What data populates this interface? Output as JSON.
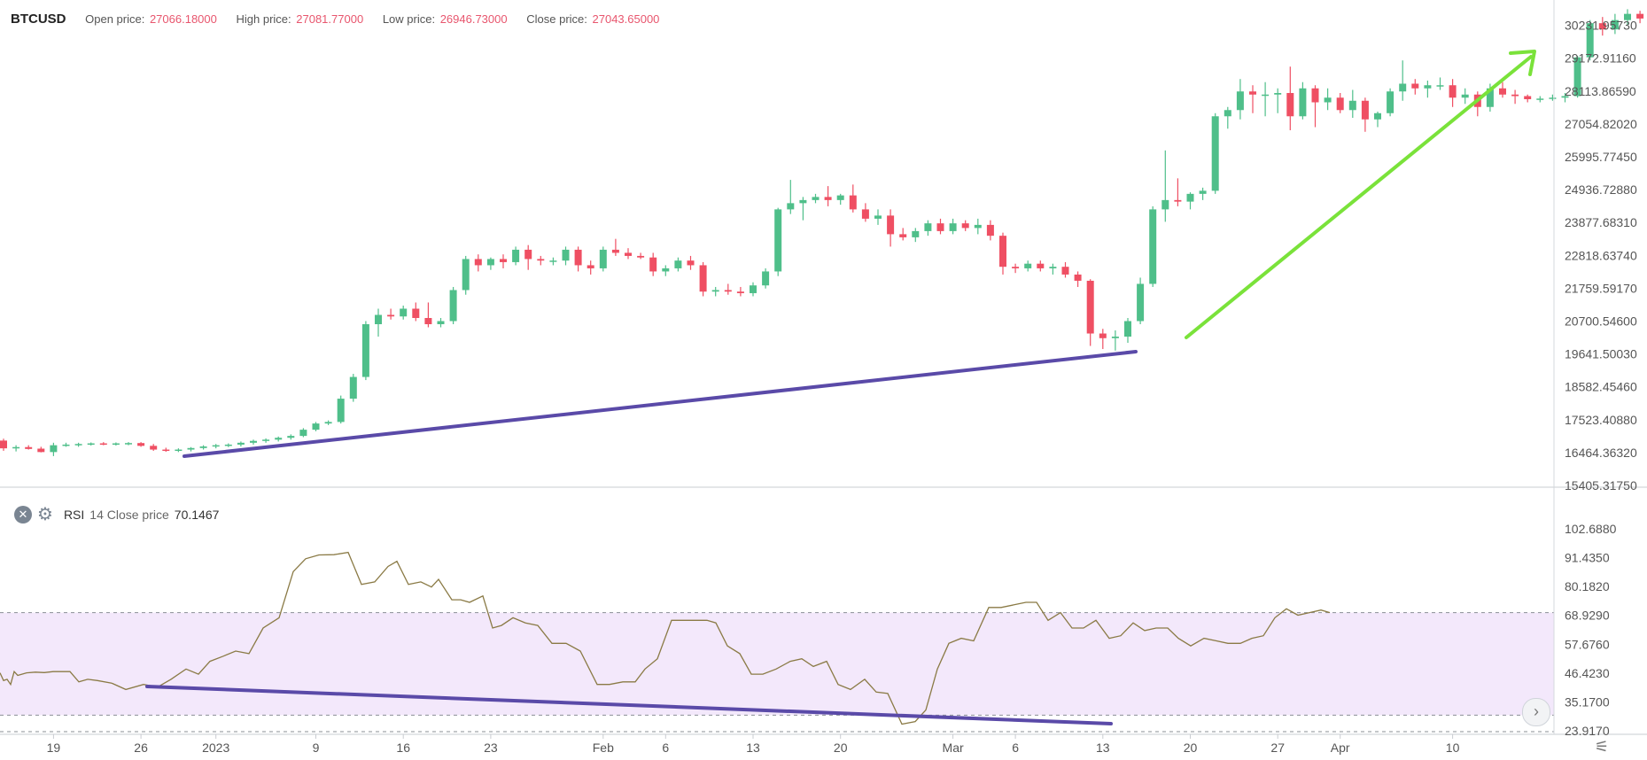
{
  "header": {
    "symbol": "BTCUSD",
    "open_label": "Open price:",
    "open_value": "27066.18000",
    "high_label": "High price:",
    "high_value": "27081.77000",
    "low_label": "Low price:",
    "low_value": "26946.73000",
    "close_label": "Close price:",
    "close_value": "27043.65000"
  },
  "rsi_legend": {
    "name": "RSI",
    "params": "14 Close price",
    "value": "70.1467"
  },
  "colors": {
    "up": "#4fbf8a",
    "down": "#ef4f63",
    "rsi_line": "#8a7a45",
    "rsi_band": "#f3e8fb",
    "trend_purple": "#5a4aa8",
    "trend_green": "#7ae23a"
  },
  "chart_data": [
    {
      "type": "candlestick",
      "price_axis_ticks": [
        "30231.95730",
        "29172.91160",
        "28113.86590",
        "27054.82020",
        "25995.77450",
        "24936.72880",
        "23877.68310",
        "22818.63740",
        "21759.59170",
        "20700.54600",
        "19641.50030",
        "18582.45460",
        "17523.40880",
        "16464.36320",
        "15405.31750"
      ],
      "ylim": [
        15405.3175,
        30761.47
      ],
      "x_axis_ticks": [
        {
          "label": "19",
          "i": 4
        },
        {
          "label": "26",
          "i": 11
        },
        {
          "label": "2023",
          "i": 17
        },
        {
          "label": "9",
          "i": 25
        },
        {
          "label": "16",
          "i": 32
        },
        {
          "label": "23",
          "i": 39
        },
        {
          "label": "Feb",
          "i": 48
        },
        {
          "label": "6",
          "i": 53
        },
        {
          "label": "13",
          "i": 60
        },
        {
          "label": "20",
          "i": 67
        },
        {
          "label": "Mar",
          "i": 76
        },
        {
          "label": "6",
          "i": 81
        },
        {
          "label": "13",
          "i": 88
        },
        {
          "label": "20",
          "i": 95
        },
        {
          "label": "27",
          "i": 102
        },
        {
          "label": "Apr",
          "i": 107
        },
        {
          "label": "10",
          "i": 116
        }
      ],
      "candles": [
        [
          16850,
          16910,
          16520,
          16600
        ],
        [
          16600,
          16700,
          16500,
          16640
        ],
        [
          16640,
          16700,
          16560,
          16580
        ],
        [
          16590,
          16650,
          16470,
          16480
        ],
        [
          16480,
          16780,
          16350,
          16700
        ],
        [
          16700,
          16780,
          16650,
          16720
        ],
        [
          16720,
          16780,
          16650,
          16740
        ],
        [
          16740,
          16790,
          16690,
          16760
        ],
        [
          16760,
          16800,
          16700,
          16740
        ],
        [
          16740,
          16790,
          16690,
          16760
        ],
        [
          16760,
          16800,
          16700,
          16770
        ],
        [
          16770,
          16800,
          16650,
          16680
        ],
        [
          16680,
          16740,
          16520,
          16560
        ],
        [
          16560,
          16620,
          16490,
          16520
        ],
        [
          16520,
          16600,
          16480,
          16560
        ],
        [
          16560,
          16640,
          16500,
          16610
        ],
        [
          16610,
          16700,
          16560,
          16660
        ],
        [
          16660,
          16740,
          16600,
          16700
        ],
        [
          16700,
          16760,
          16640,
          16720
        ],
        [
          16720,
          16820,
          16660,
          16780
        ],
        [
          16780,
          16880,
          16720,
          16840
        ],
        [
          16840,
          16920,
          16780,
          16880
        ],
        [
          16880,
          16980,
          16820,
          16940
        ],
        [
          16940,
          17050,
          16880,
          17000
        ],
        [
          17000,
          17250,
          16960,
          17200
        ],
        [
          17200,
          17450,
          17150,
          17400
        ],
        [
          17400,
          17500,
          17350,
          17450
        ],
        [
          17450,
          18300,
          17400,
          18200
        ],
        [
          18200,
          19000,
          18100,
          18900
        ],
        [
          18900,
          20700,
          18800,
          20600
        ],
        [
          20600,
          21100,
          20200,
          20900
        ],
        [
          20900,
          21100,
          20750,
          20850
        ],
        [
          20850,
          21200,
          20750,
          21100
        ],
        [
          21100,
          21300,
          20700,
          20800
        ],
        [
          20800,
          21300,
          20500,
          20600
        ],
        [
          20600,
          20800,
          20500,
          20700
        ],
        [
          20700,
          21800,
          20600,
          21700
        ],
        [
          21700,
          22800,
          21550,
          22700
        ],
        [
          22700,
          22850,
          22300,
          22500
        ],
        [
          22500,
          22750,
          22350,
          22700
        ],
        [
          22700,
          22850,
          22400,
          22600
        ],
        [
          22600,
          23100,
          22500,
          23000
        ],
        [
          23000,
          23150,
          22350,
          22700
        ],
        [
          22700,
          22800,
          22500,
          22650
        ],
        [
          22650,
          22750,
          22500,
          22650
        ],
        [
          22650,
          23100,
          22500,
          23000
        ],
        [
          23000,
          23100,
          22300,
          22500
        ],
        [
          22500,
          22650,
          22200,
          22400
        ],
        [
          22400,
          23100,
          22300,
          23000
        ],
        [
          23000,
          23350,
          22800,
          22900
        ],
        [
          22900,
          23050,
          22700,
          22800
        ],
        [
          22800,
          22900,
          22700,
          22750
        ],
        [
          22750,
          22900,
          22150,
          22300
        ],
        [
          22300,
          22500,
          22150,
          22400
        ],
        [
          22400,
          22750,
          22300,
          22650
        ],
        [
          22650,
          22800,
          22350,
          22500
        ],
        [
          22500,
          22600,
          21500,
          21650
        ],
        [
          21650,
          21800,
          21500,
          21700
        ],
        [
          21700,
          21900,
          21550,
          21650
        ],
        [
          21650,
          21800,
          21500,
          21600
        ],
        [
          21600,
          21950,
          21500,
          21850
        ],
        [
          21850,
          22400,
          21750,
          22300
        ],
        [
          22300,
          24350,
          22150,
          24300
        ],
        [
          24300,
          25250,
          24150,
          24500
        ],
        [
          24500,
          24700,
          23950,
          24600
        ],
        [
          24600,
          24800,
          24500,
          24700
        ],
        [
          24700,
          25050,
          24400,
          24600
        ],
        [
          24600,
          24800,
          24450,
          24750
        ],
        [
          24750,
          25100,
          24200,
          24300
        ],
        [
          24300,
          24500,
          23900,
          24000
        ],
        [
          24000,
          24300,
          23800,
          24100
        ],
        [
          24100,
          24300,
          23100,
          23500
        ],
        [
          23500,
          23700,
          23300,
          23400
        ],
        [
          23400,
          23700,
          23250,
          23600
        ],
        [
          23600,
          23950,
          23450,
          23850
        ],
        [
          23850,
          24000,
          23500,
          23600
        ],
        [
          23600,
          24000,
          23500,
          23850
        ],
        [
          23850,
          23950,
          23600,
          23700
        ],
        [
          23700,
          24000,
          23500,
          23800
        ],
        [
          23800,
          23950,
          23300,
          23450
        ],
        [
          23450,
          23550,
          22200,
          22450
        ],
        [
          22450,
          22550,
          22250,
          22400
        ],
        [
          22400,
          22650,
          22300,
          22550
        ],
        [
          22550,
          22650,
          22300,
          22400
        ],
        [
          22400,
          22550,
          22200,
          22450
        ],
        [
          22450,
          22600,
          22100,
          22200
        ],
        [
          22200,
          22300,
          21800,
          22000
        ],
        [
          22000,
          22050,
          19900,
          20300
        ],
        [
          20300,
          20450,
          19800,
          20150
        ],
        [
          20150,
          20400,
          19750,
          20200
        ],
        [
          20200,
          20800,
          20000,
          20700
        ],
        [
          20700,
          22100,
          20600,
          21900
        ],
        [
          21900,
          24400,
          21800,
          24300
        ],
        [
          24300,
          26200,
          23900,
          24600
        ],
        [
          24600,
          25300,
          24400,
          24550
        ],
        [
          24550,
          24850,
          24300,
          24800
        ],
        [
          24800,
          25000,
          24600,
          24900
        ],
        [
          24900,
          27400,
          24800,
          27300
        ],
        [
          27300,
          27600,
          26900,
          27500
        ],
        [
          27500,
          28500,
          27200,
          28100
        ],
        [
          28100,
          28300,
          27400,
          28000
        ],
        [
          28000,
          28400,
          27300,
          28000
        ],
        [
          28000,
          28200,
          27400,
          28050
        ],
        [
          28050,
          28900,
          26850,
          27300
        ],
        [
          27300,
          28400,
          27200,
          28200
        ],
        [
          28200,
          28300,
          26950,
          27750
        ],
        [
          27750,
          28200,
          27500,
          27900
        ],
        [
          27900,
          28050,
          27400,
          27500
        ],
        [
          27500,
          28150,
          27250,
          27800
        ],
        [
          27800,
          27900,
          26800,
          27200
        ],
        [
          27200,
          27450,
          26950,
          27400
        ],
        [
          27400,
          28200,
          27300,
          28100
        ],
        [
          28100,
          29100,
          27800,
          28350
        ],
        [
          28350,
          28500,
          28000,
          28200
        ],
        [
          28200,
          28450,
          27900,
          28300
        ],
        [
          28300,
          28550,
          28150,
          28300
        ],
        [
          28300,
          28500,
          27600,
          27900
        ],
        [
          27900,
          28200,
          27700,
          28000
        ],
        [
          28000,
          28100,
          27300,
          27600
        ],
        [
          27600,
          28350,
          27450,
          28200
        ],
        [
          28200,
          28400,
          27900,
          28000
        ],
        [
          28000,
          28150,
          27700,
          27950
        ],
        [
          27950,
          28000,
          27750,
          27850
        ],
        [
          27850,
          27950,
          27750,
          27870
        ],
        [
          27870,
          28000,
          27800,
          27900
        ],
        [
          27900,
          28050,
          27750,
          27950
        ],
        [
          27950,
          29250,
          27900,
          29200
        ],
        [
          29200,
          30400,
          29100,
          30300
        ],
        [
          30300,
          30500,
          29900,
          30100
        ],
        [
          30100,
          30600,
          29950,
          30400
        ],
        [
          30400,
          30750,
          30250,
          30600
        ],
        [
          30600,
          30700,
          30300,
          30450
        ]
      ]
    },
    {
      "type": "line",
      "name": "RSI",
      "y_axis_ticks": [
        "102.6880",
        "91.4350",
        "80.1820",
        "68.9290",
        "57.6760",
        "46.4230",
        "35.1700",
        "23.9170"
      ],
      "ylim": [
        23.917,
        102.688
      ],
      "levels": [
        70,
        30
      ],
      "values": [
        [
          0,
          46.5
        ],
        [
          4,
          43.5
        ],
        [
          8,
          44
        ],
        [
          12,
          42
        ],
        [
          16,
          47
        ],
        [
          20,
          45.5
        ],
        [
          30,
          46.5
        ],
        [
          40,
          46.8
        ],
        [
          50,
          46.6
        ],
        [
          60,
          47
        ],
        [
          70,
          47
        ],
        [
          79,
          47
        ],
        [
          89,
          43
        ],
        [
          99,
          44
        ],
        [
          110,
          43.5
        ],
        [
          126,
          42.5
        ],
        [
          142,
          40
        ],
        [
          162,
          42
        ],
        [
          178,
          41
        ],
        [
          193,
          44
        ],
        [
          210,
          48
        ],
        [
          224,
          46
        ],
        [
          237,
          51
        ],
        [
          252,
          53
        ],
        [
          266,
          55
        ],
        [
          281,
          54
        ],
        [
          297,
          64
        ],
        [
          315,
          68
        ],
        [
          331,
          86
        ],
        [
          345,
          91
        ],
        [
          360,
          92.5
        ],
        [
          377,
          92.6
        ],
        [
          393,
          93.5
        ],
        [
          408,
          81
        ],
        [
          423,
          82
        ],
        [
          438,
          88
        ],
        [
          448,
          90
        ],
        [
          461,
          81
        ],
        [
          475,
          82
        ],
        [
          487,
          80
        ],
        [
          495,
          83
        ],
        [
          510,
          75
        ],
        [
          520,
          75
        ],
        [
          530,
          74
        ],
        [
          545,
          76.5
        ],
        [
          556,
          64
        ],
        [
          566,
          65
        ],
        [
          579,
          68
        ],
        [
          593,
          66
        ],
        [
          607,
          65
        ],
        [
          623,
          58
        ],
        [
          639,
          58
        ],
        [
          655,
          55
        ],
        [
          674,
          42
        ],
        [
          688,
          42
        ],
        [
          703,
          43
        ],
        [
          717,
          43
        ],
        [
          728,
          48
        ],
        [
          742,
          52
        ],
        [
          758,
          67
        ],
        [
          772,
          67
        ],
        [
          787,
          67
        ],
        [
          798,
          67
        ],
        [
          808,
          66
        ],
        [
          821,
          57
        ],
        [
          835,
          54
        ],
        [
          848,
          46
        ],
        [
          861,
          46
        ],
        [
          876,
          48
        ],
        [
          892,
          51
        ],
        [
          905,
          52
        ],
        [
          918,
          49
        ],
        [
          933,
          51
        ],
        [
          946,
          42
        ],
        [
          960,
          40
        ],
        [
          976,
          44
        ],
        [
          989,
          39
        ],
        [
          1002,
          38.5
        ],
        [
          1018,
          26.5
        ],
        [
          1033,
          27.5
        ],
        [
          1045,
          32
        ],
        [
          1058,
          48
        ],
        [
          1071,
          58
        ],
        [
          1085,
          60
        ],
        [
          1099,
          59
        ],
        [
          1116,
          72
        ],
        [
          1130,
          72
        ],
        [
          1144,
          73
        ],
        [
          1158,
          74
        ],
        [
          1170,
          74
        ],
        [
          1183,
          67
        ],
        [
          1197,
          70
        ],
        [
          1210,
          64
        ],
        [
          1223,
          64
        ],
        [
          1237,
          67
        ],
        [
          1252,
          60
        ],
        [
          1265,
          61
        ],
        [
          1279,
          66
        ],
        [
          1292,
          63
        ],
        [
          1305,
          64
        ],
        [
          1318,
          64
        ],
        [
          1330,
          60
        ],
        [
          1344,
          57
        ],
        [
          1359,
          60
        ],
        [
          1373,
          59
        ],
        [
          1386,
          58
        ],
        [
          1400,
          58
        ],
        [
          1413,
          60
        ],
        [
          1426,
          61
        ],
        [
          1439,
          68
        ],
        [
          1452,
          71.5
        ],
        [
          1465,
          69
        ],
        [
          1478,
          70
        ],
        [
          1491,
          71
        ],
        [
          1501,
          70
        ]
      ]
    }
  ]
}
